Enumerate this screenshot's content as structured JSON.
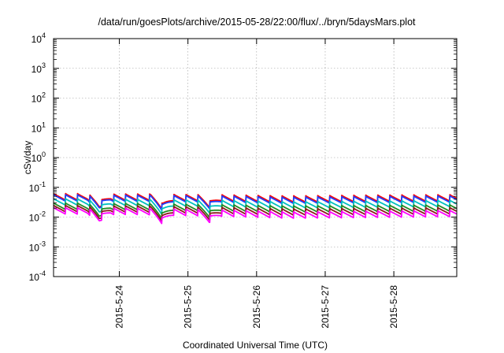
{
  "chart_data": {
    "type": "line",
    "title": "/data/run/goesPlots/archive/2015-05-28/22:00/flux/../bryn/5daysMars.plot",
    "xlabel": "Coordinated Universal Time (UTC)",
    "ylabel": "cSv/day",
    "yscale": "log",
    "ylim": [
      0.0001,
      10000
    ],
    "xlim": [
      "2015-05-23 01:00",
      "2015-05-28 22:00"
    ],
    "x_ticks": [
      "2015-5-24",
      "2015-5-25",
      "2015-5-26",
      "2015-5-27",
      "2015-5-28"
    ],
    "y_ticks": [
      {
        "base": "10",
        "exp": "4"
      },
      {
        "base": "10",
        "exp": "3"
      },
      {
        "base": "10",
        "exp": "2"
      },
      {
        "base": "10",
        "exp": "1"
      },
      {
        "base": "10",
        "exp": "0"
      },
      {
        "base": "10",
        "exp": "-1"
      },
      {
        "base": "10",
        "exp": "-2"
      },
      {
        "base": "10",
        "exp": "-3"
      },
      {
        "base": "10",
        "exp": "-4"
      }
    ],
    "grid": true,
    "pattern": "sawtooth dose-rate decays; each series rises sharply then decays over ~6 hours",
    "series": [
      {
        "color": "#ff0000",
        "peak_levels": [
          0.062,
          0.06,
          0.058,
          0.052,
          0.055,
          0.057
        ]
      },
      {
        "color": "#1f3fff",
        "peak_levels": [
          0.057,
          0.055,
          0.053,
          0.047,
          0.05,
          0.052
        ]
      },
      {
        "color": "#00bfbf",
        "peak_levels": [
          0.042,
          0.04,
          0.038,
          0.033,
          0.035,
          0.037
        ]
      },
      {
        "color": "#228b22",
        "peak_levels": [
          0.03,
          0.029,
          0.027,
          0.024,
          0.025,
          0.026
        ]
      },
      {
        "color": "#8b1a1a",
        "peak_levels": [
          0.025,
          0.024,
          0.022,
          0.019,
          0.02,
          0.021
        ]
      },
      {
        "color": "#ff00ff",
        "peak_levels": [
          0.021,
          0.02,
          0.018,
          0.015,
          0.016,
          0.017
        ]
      }
    ],
    "trough_ratio": 0.6,
    "dips": [
      {
        "at": "2015-05-23 17:00",
        "depth": 0.55
      },
      {
        "at": "2015-05-24 15:00",
        "depth": 0.5
      },
      {
        "at": "2015-05-25 07:30",
        "depth": 0.6
      }
    ]
  }
}
